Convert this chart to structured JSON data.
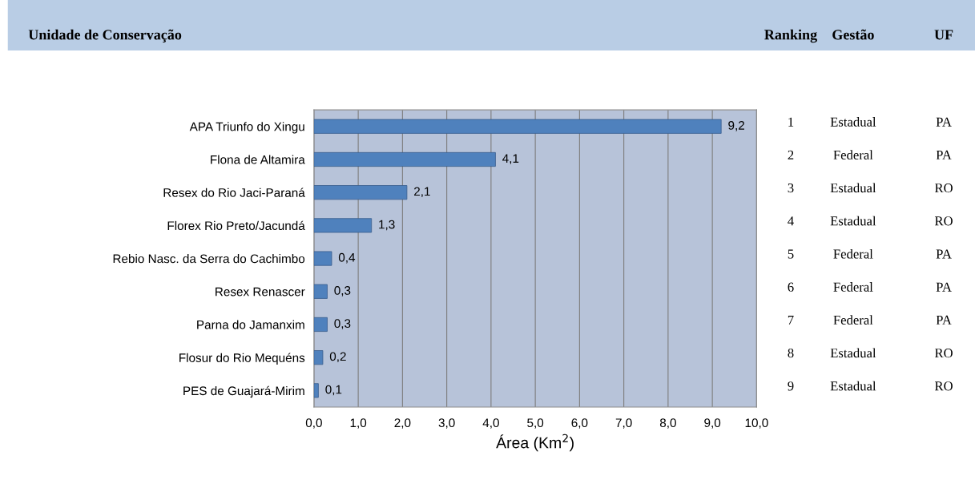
{
  "chart_data": {
    "type": "bar",
    "orientation": "horizontal",
    "title": "Unidade de Conservação",
    "categories": [
      "APA Triunfo do Xingu",
      "Flona de Altamira",
      "Resex do Rio Jaci-Paraná",
      "Florex Rio Preto/Jacundá",
      "Rebio Nasc. da Serra do Cachimbo",
      "Resex Renascer",
      "Parna do Jamanxim",
      "Flosur do Rio Mequéns",
      "PES de Guajará-Mirim"
    ],
    "values": [
      9.2,
      4.1,
      2.1,
      1.3,
      0.4,
      0.3,
      0.3,
      0.2,
      0.1
    ],
    "value_labels": [
      "9,2",
      "4,1",
      "2,1",
      "1,3",
      "0,4",
      "0,3",
      "0,3",
      "0,2",
      "0,1"
    ],
    "color": "#4f81bd",
    "xlabel": "Área (Km$^{2}$)",
    "xlim": [
      0,
      10
    ],
    "xticks": [
      {
        "value": 0,
        "label": "0,0"
      },
      {
        "value": 1,
        "label": "1,0"
      },
      {
        "value": 2,
        "label": "2,0"
      },
      {
        "value": 3,
        "label": "3,0"
      },
      {
        "value": 4,
        "label": "4,0"
      },
      {
        "value": 5,
        "label": "5,0"
      },
      {
        "value": 6,
        "label": "6,0"
      },
      {
        "value": 7,
        "label": "7,0"
      },
      {
        "value": 8,
        "label": "8,0"
      },
      {
        "value": 9,
        "label": "9,0"
      },
      {
        "value": 10,
        "label": "10,0"
      }
    ],
    "grid": "x",
    "annotations": [
      "Ranking",
      "Gestão",
      "UF",
      "1",
      "Estadual",
      "PA",
      "2",
      "Federal",
      "PA",
      "3",
      "Estadual",
      "RO",
      "4",
      "Estadual",
      "RO",
      "5",
      "Federal",
      "PA",
      "6",
      "Federal",
      "PA",
      "7",
      "Federal",
      "PA",
      "8",
      "Estadual",
      "RO",
      "9",
      "Estadual",
      "RO"
    ]
  }
}
